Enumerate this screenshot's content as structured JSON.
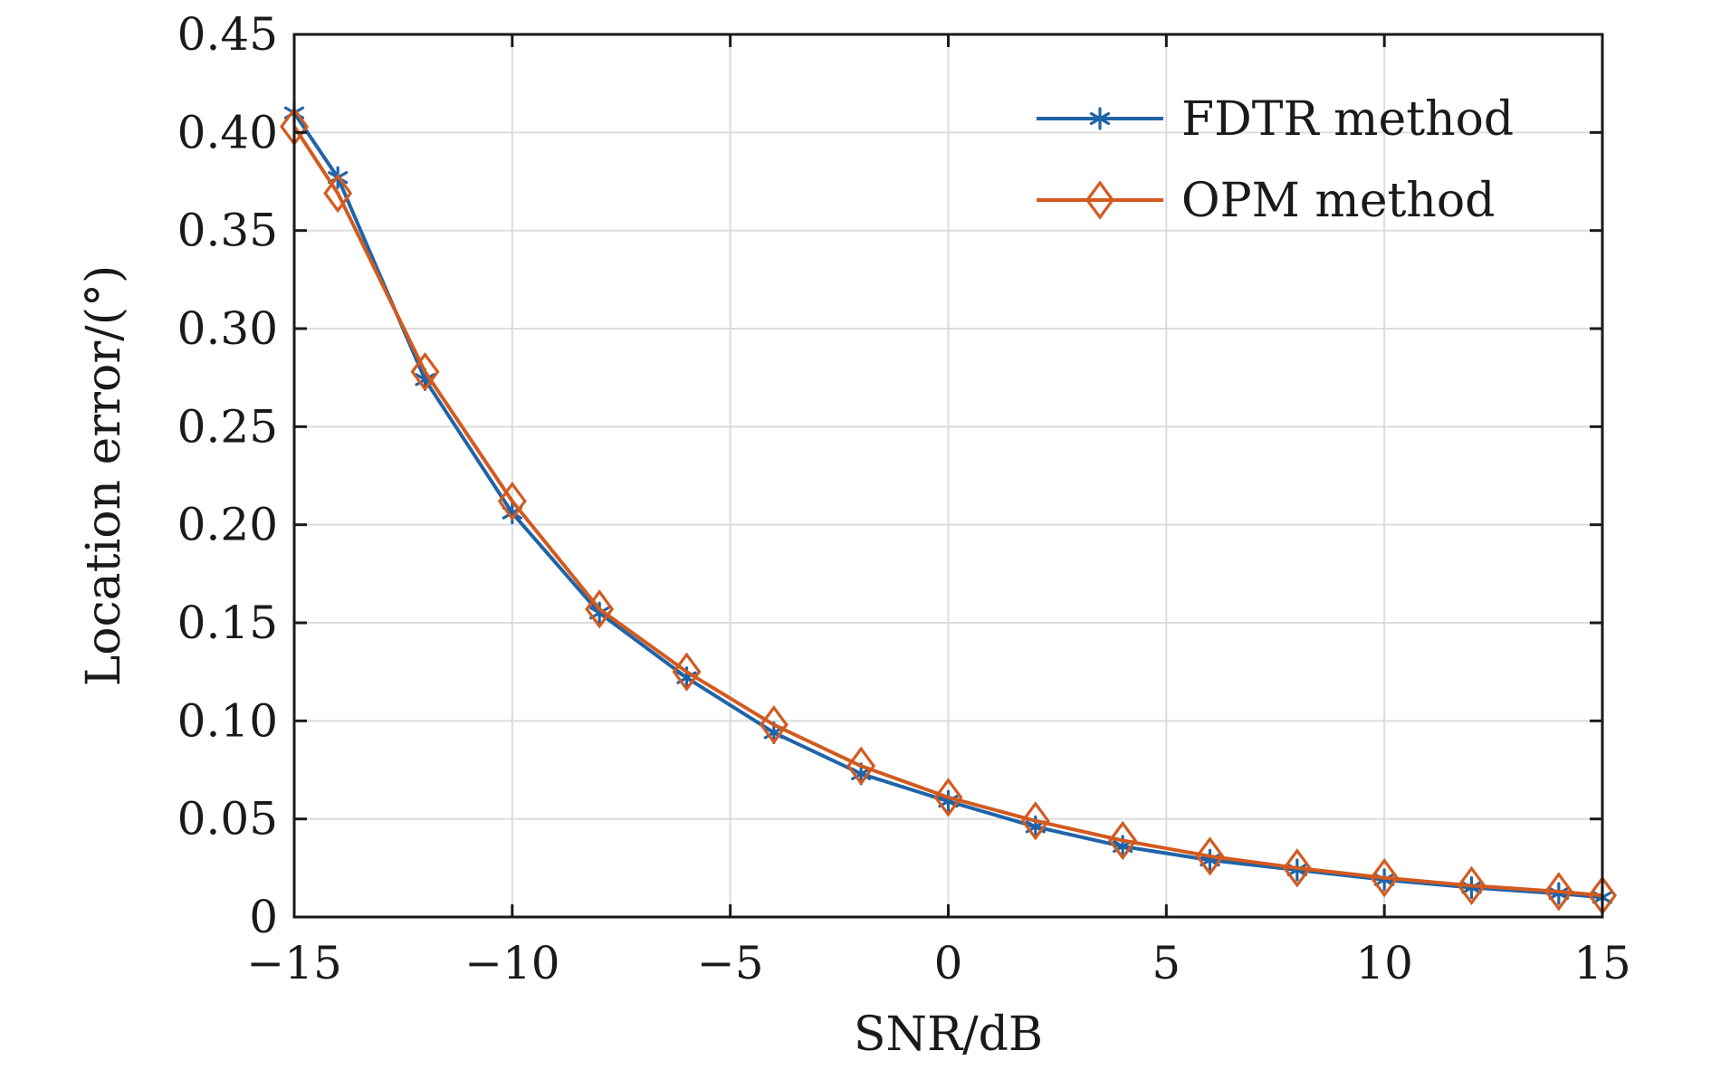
{
  "chart_data": {
    "type": "line",
    "title": "",
    "xlabel": "SNR/dB",
    "ylabel": "Location error/(°)",
    "xlim": [
      -15,
      15
    ],
    "ylim": [
      0,
      0.45
    ],
    "grid": true,
    "legend_position": "top-right",
    "xticks": [
      -15,
      -10,
      -5,
      0,
      5,
      10,
      15
    ],
    "xtick_labels": [
      "−15",
      "−10",
      "−5",
      "0",
      "5",
      "10",
      "15"
    ],
    "yticks": [
      0,
      0.05,
      0.1,
      0.15,
      0.2,
      0.25,
      0.3,
      0.35,
      0.4,
      0.45
    ],
    "ytick_labels": [
      "0",
      "0.05",
      "0.10",
      "0.15",
      "0.20",
      "0.25",
      "0.30",
      "0.35",
      "0.40",
      "0.45"
    ],
    "x": [
      -15,
      -14,
      -12,
      -10,
      -8,
      -6,
      -4,
      -2,
      0,
      2,
      4,
      6,
      8,
      10,
      12,
      14,
      15
    ],
    "series": [
      {
        "name": "FDTR method",
        "color": "#1f64a8",
        "marker": "asterisk",
        "values": [
          0.41,
          0.377,
          0.274,
          0.206,
          0.155,
          0.122,
          0.094,
          0.073,
          0.059,
          0.046,
          0.036,
          0.029,
          0.024,
          0.019,
          0.015,
          0.012,
          0.01
        ]
      },
      {
        "name": "OPM method",
        "color": "#d35a1f",
        "marker": "diamond",
        "values": [
          0.403,
          0.369,
          0.278,
          0.212,
          0.157,
          0.125,
          0.098,
          0.077,
          0.061,
          0.049,
          0.039,
          0.031,
          0.025,
          0.02,
          0.016,
          0.013,
          0.011
        ]
      }
    ]
  }
}
